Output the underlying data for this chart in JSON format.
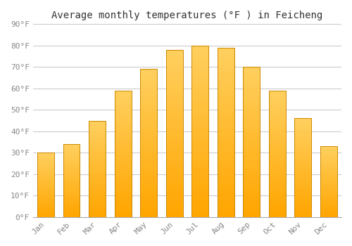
{
  "title": "Average monthly temperatures (°F ) in Feicheng",
  "months": [
    "Jan",
    "Feb",
    "Mar",
    "Apr",
    "May",
    "Jun",
    "Jul",
    "Aug",
    "Sep",
    "Oct",
    "Nov",
    "Dec"
  ],
  "values": [
    30,
    34,
    45,
    59,
    69,
    78,
    80,
    79,
    70,
    59,
    46,
    33
  ],
  "bar_color_main": "#FFA500",
  "bar_color_light": "#FFD060",
  "bar_edge_color": "#CC8800",
  "ylim": [
    0,
    90
  ],
  "yticks": [
    0,
    10,
    20,
    30,
    40,
    50,
    60,
    70,
    80,
    90
  ],
  "ytick_labels": [
    "0°F",
    "10°F",
    "20°F",
    "30°F",
    "40°F",
    "50°F",
    "60°F",
    "70°F",
    "80°F",
    "90°F"
  ],
  "grid_color": "#cccccc",
  "background_color": "#ffffff",
  "title_fontsize": 10,
  "tick_fontsize": 8,
  "bar_width": 0.65
}
